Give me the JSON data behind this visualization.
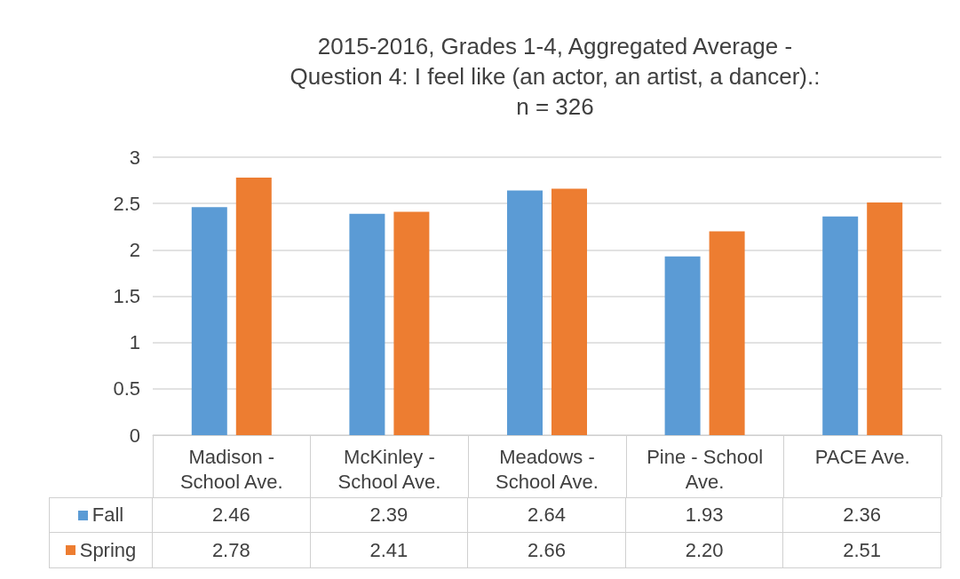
{
  "chart_data": {
    "type": "bar",
    "title": "2015-2016, Grades 1-4, Aggregated Average -\nQuestion 4: I feel like (an actor, an artist, a dancer).:\nn = 326",
    "categories": [
      "Madison -\nSchool Ave.",
      "McKinley -\nSchool Ave.",
      "Meadows -\nSchool Ave.",
      "Pine - School\nAve.",
      "PACE Ave."
    ],
    "series": [
      {
        "name": "Fall",
        "color": "#5b9bd5",
        "values": [
          2.46,
          2.39,
          2.64,
          1.93,
          2.36
        ],
        "value_labels": [
          "2.46",
          "2.39",
          "2.64",
          "1.93",
          "2.36"
        ]
      },
      {
        "name": "Spring",
        "color": "#ed7d31",
        "values": [
          2.78,
          2.41,
          2.66,
          2.2,
          2.51
        ],
        "value_labels": [
          "2.78",
          "2.41",
          "2.66",
          "2.20",
          "2.51"
        ]
      }
    ],
    "ylim": [
      0,
      3
    ],
    "yticks": [
      0,
      0.5,
      1,
      1.5,
      2,
      2.5,
      3
    ],
    "grid": "y",
    "legend": "bottom left"
  }
}
